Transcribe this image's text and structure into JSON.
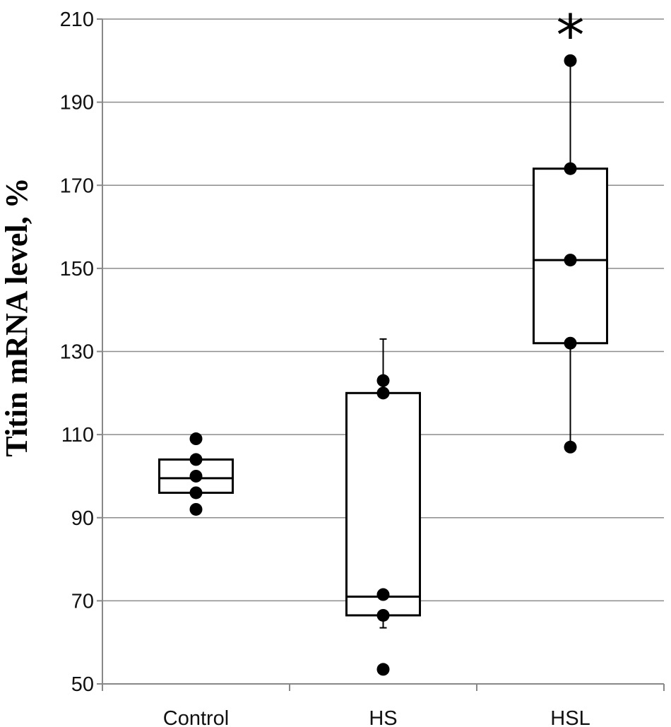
{
  "chart_data": {
    "type": "box",
    "ylabel": "Titin mRNA level, %",
    "xlabel": "",
    "ylim": [
      50,
      210
    ],
    "yticks": [
      50,
      70,
      90,
      110,
      130,
      150,
      170,
      190,
      210
    ],
    "categories": [
      "Control",
      "HS",
      "HSL"
    ],
    "grid": true,
    "groups": [
      {
        "name": "Control",
        "q1": 96,
        "median": 99.5,
        "q3": 104,
        "whisker_low": null,
        "whisker_high": null,
        "points": [
          109,
          104,
          100,
          96,
          92
        ],
        "annotation": ""
      },
      {
        "name": "HS",
        "q1": 66.5,
        "median": 71,
        "q3": 120,
        "whisker_low": 63.5,
        "whisker_high": 133,
        "points": [
          123,
          120,
          71.5,
          66.5,
          53.5
        ],
        "annotation": ""
      },
      {
        "name": "HSL",
        "q1": 132,
        "median": 152,
        "q3": 174,
        "whisker_low": 107,
        "whisker_high": 200,
        "points": [
          200,
          174,
          152,
          132,
          107
        ],
        "annotation": "*"
      }
    ]
  }
}
